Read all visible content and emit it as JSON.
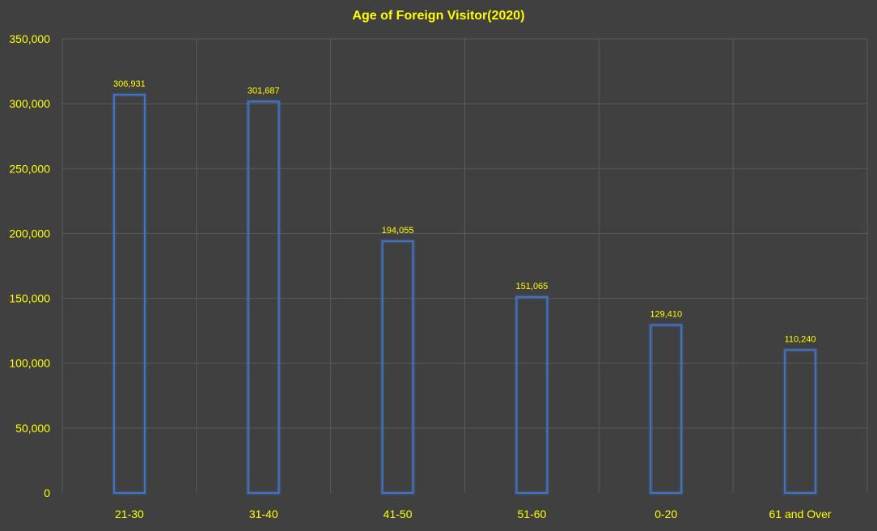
{
  "chart_data": {
    "type": "bar",
    "title": "Age of Foreign Visitor(2020)",
    "xlabel": "",
    "ylabel": "",
    "categories": [
      "21-30",
      "31-40",
      "41-50",
      "51-60",
      "0-20",
      "61 and Over"
    ],
    "values": [
      306931,
      301687,
      194055,
      151065,
      129410,
      110240
    ],
    "data_labels": [
      "306,931",
      "301,687",
      "194,055",
      "151,065",
      "129,410",
      "110,240"
    ],
    "ylim": [
      0,
      350000
    ],
    "yticks": [
      0,
      50000,
      100000,
      150000,
      200000,
      250000,
      300000,
      350000
    ],
    "ytick_labels": [
      "0",
      "50,000",
      "100,000",
      "150,000",
      "200,000",
      "250,000",
      "300,000",
      "350,000"
    ],
    "grid": true,
    "legend": "none",
    "colors": {
      "background": "#404040",
      "text": "#ffff00",
      "bar_outline": "#4472c4",
      "grid": "#5a5a5a"
    }
  }
}
